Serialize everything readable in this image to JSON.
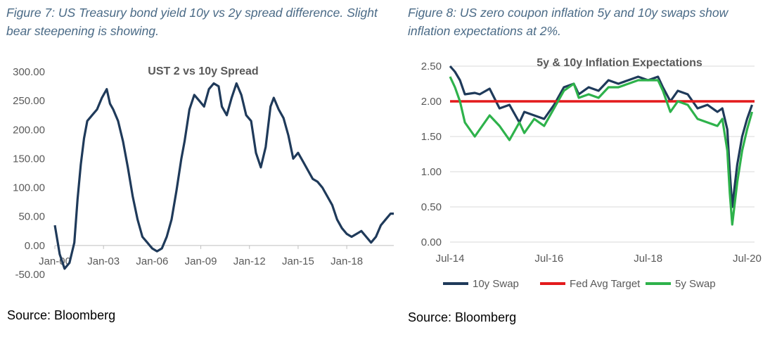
{
  "figure7": {
    "caption_line1": "Figure 7: US Treasury bond yield 10y vs 2y spread difference. Slight",
    "caption_line2": "bear steepening is showing.",
    "source": "Source: Bloomberg"
  },
  "figure8": {
    "caption_line1": "Figure 8: US zero coupon inflation 5y and 10y swaps show",
    "caption_line2": "inflation expectations at 2%.",
    "source": "Source: Bloomberg"
  },
  "chart_data": [
    {
      "type": "line",
      "title": "UST 2 vs 10y Spread",
      "xlabel": "",
      "ylabel": "",
      "ylim": [
        -50,
        300
      ],
      "yticks": [
        "-50.00",
        "0.00",
        "50.00",
        "100.00",
        "150.00",
        "200.00",
        "250.00",
        "300.00"
      ],
      "xticks": [
        "Jan-00",
        "Jan-03",
        "Jan-06",
        "Jan-09",
        "Jan-12",
        "Jan-15",
        "Jan-18"
      ],
      "xlim": [
        2000.0,
        2020.9
      ],
      "grid": false,
      "series_color": "#1f3a5a",
      "series": [
        {
          "x": [
            2000.0,
            2000.3,
            2000.6,
            2000.9,
            2001.2,
            2001.4,
            2001.6,
            2001.8,
            2002.0,
            2002.3,
            2002.6,
            2002.9,
            2003.2,
            2003.4,
            2003.6,
            2003.9,
            2004.2,
            2004.5,
            2004.8,
            2005.1,
            2005.4,
            2005.7,
            2006.0,
            2006.3,
            2006.6,
            2006.9,
            2007.2,
            2007.5,
            2007.8,
            2008.0,
            2008.3,
            2008.6,
            2008.9,
            2009.2,
            2009.5,
            2009.8,
            2010.1,
            2010.3,
            2010.6,
            2010.9,
            2011.2,
            2011.5,
            2011.8,
            2012.1,
            2012.4,
            2012.7,
            2013.0,
            2013.3,
            2013.5,
            2013.8,
            2014.1,
            2014.4,
            2014.7,
            2015.0,
            2015.3,
            2015.6,
            2015.9,
            2016.2,
            2016.5,
            2016.8,
            2017.1,
            2017.4,
            2017.7,
            2018.0,
            2018.3,
            2018.6,
            2018.9,
            2019.2,
            2019.5,
            2019.8,
            2020.1,
            2020.4,
            2020.7,
            2020.9
          ],
          "values": [
            35,
            -15,
            -40,
            -30,
            5,
            80,
            140,
            185,
            215,
            225,
            235,
            255,
            270,
            245,
            235,
            215,
            180,
            135,
            85,
            45,
            15,
            5,
            -5,
            -10,
            -5,
            15,
            45,
            95,
            150,
            180,
            235,
            260,
            250,
            240,
            270,
            280,
            275,
            240,
            225,
            255,
            280,
            260,
            225,
            215,
            160,
            135,
            170,
            240,
            255,
            235,
            220,
            190,
            150,
            160,
            145,
            130,
            115,
            110,
            100,
            85,
            70,
            45,
            30,
            20,
            15,
            20,
            25,
            15,
            5,
            15,
            35,
            45,
            55,
            55
          ]
        }
      ]
    },
    {
      "type": "line",
      "title": "5y & 10y Inflation Expectations",
      "xlabel": "",
      "ylabel": "",
      "ylim": [
        0,
        2.5
      ],
      "yticks": [
        "0.00",
        "0.50",
        "1.00",
        "1.50",
        "2.00",
        "2.50"
      ],
      "xticks": [
        "Jul-14",
        "Jul-16",
        "Jul-18",
        "Jul-20"
      ],
      "xlim": [
        2014.5,
        2020.65
      ],
      "grid": true,
      "legend": "bottom",
      "series": [
        {
          "name": "10y Swap",
          "color": "#1f3a5a",
          "x": [
            2014.5,
            2014.6,
            2014.7,
            2014.8,
            2015.0,
            2015.1,
            2015.3,
            2015.5,
            2015.7,
            2015.9,
            2016.0,
            2016.2,
            2016.4,
            2016.6,
            2016.8,
            2017.0,
            2017.1,
            2017.3,
            2017.5,
            2017.7,
            2017.9,
            2018.1,
            2018.3,
            2018.5,
            2018.7,
            2018.8,
            2018.95,
            2019.1,
            2019.3,
            2019.5,
            2019.7,
            2019.9,
            2020.0,
            2020.1,
            2020.15,
            2020.2,
            2020.3,
            2020.4,
            2020.5,
            2020.6
          ],
          "values": [
            2.5,
            2.42,
            2.3,
            2.1,
            2.12,
            2.1,
            2.18,
            1.9,
            1.95,
            1.7,
            1.85,
            1.8,
            1.75,
            1.95,
            2.2,
            2.25,
            2.1,
            2.2,
            2.15,
            2.3,
            2.25,
            2.3,
            2.35,
            2.3,
            2.35,
            2.2,
            2.0,
            2.15,
            2.1,
            1.9,
            1.95,
            1.85,
            1.9,
            1.6,
            1.0,
            0.5,
            1.1,
            1.5,
            1.75,
            1.95
          ]
        },
        {
          "name": "Fed Avg Target",
          "color": "#e31a1c",
          "x": [
            2014.5,
            2020.65
          ],
          "values": [
            2.0,
            2.0
          ]
        },
        {
          "name": "5y Swap",
          "color": "#2eb24b",
          "x": [
            2014.5,
            2014.6,
            2014.7,
            2014.8,
            2015.0,
            2015.1,
            2015.3,
            2015.5,
            2015.7,
            2015.9,
            2016.0,
            2016.2,
            2016.4,
            2016.6,
            2016.8,
            2017.0,
            2017.1,
            2017.3,
            2017.5,
            2017.7,
            2017.9,
            2018.1,
            2018.3,
            2018.5,
            2018.7,
            2018.8,
            2018.95,
            2019.1,
            2019.3,
            2019.5,
            2019.7,
            2019.9,
            2020.0,
            2020.1,
            2020.15,
            2020.2,
            2020.3,
            2020.4,
            2020.5,
            2020.6
          ],
          "values": [
            2.35,
            2.2,
            2.0,
            1.7,
            1.5,
            1.6,
            1.8,
            1.65,
            1.45,
            1.7,
            1.55,
            1.75,
            1.65,
            1.9,
            2.15,
            2.25,
            2.05,
            2.1,
            2.05,
            2.2,
            2.2,
            2.25,
            2.3,
            2.3,
            2.3,
            2.15,
            1.85,
            2.0,
            1.95,
            1.75,
            1.7,
            1.65,
            1.75,
            1.3,
            0.7,
            0.25,
            0.85,
            1.3,
            1.6,
            1.85
          ]
        }
      ]
    }
  ]
}
